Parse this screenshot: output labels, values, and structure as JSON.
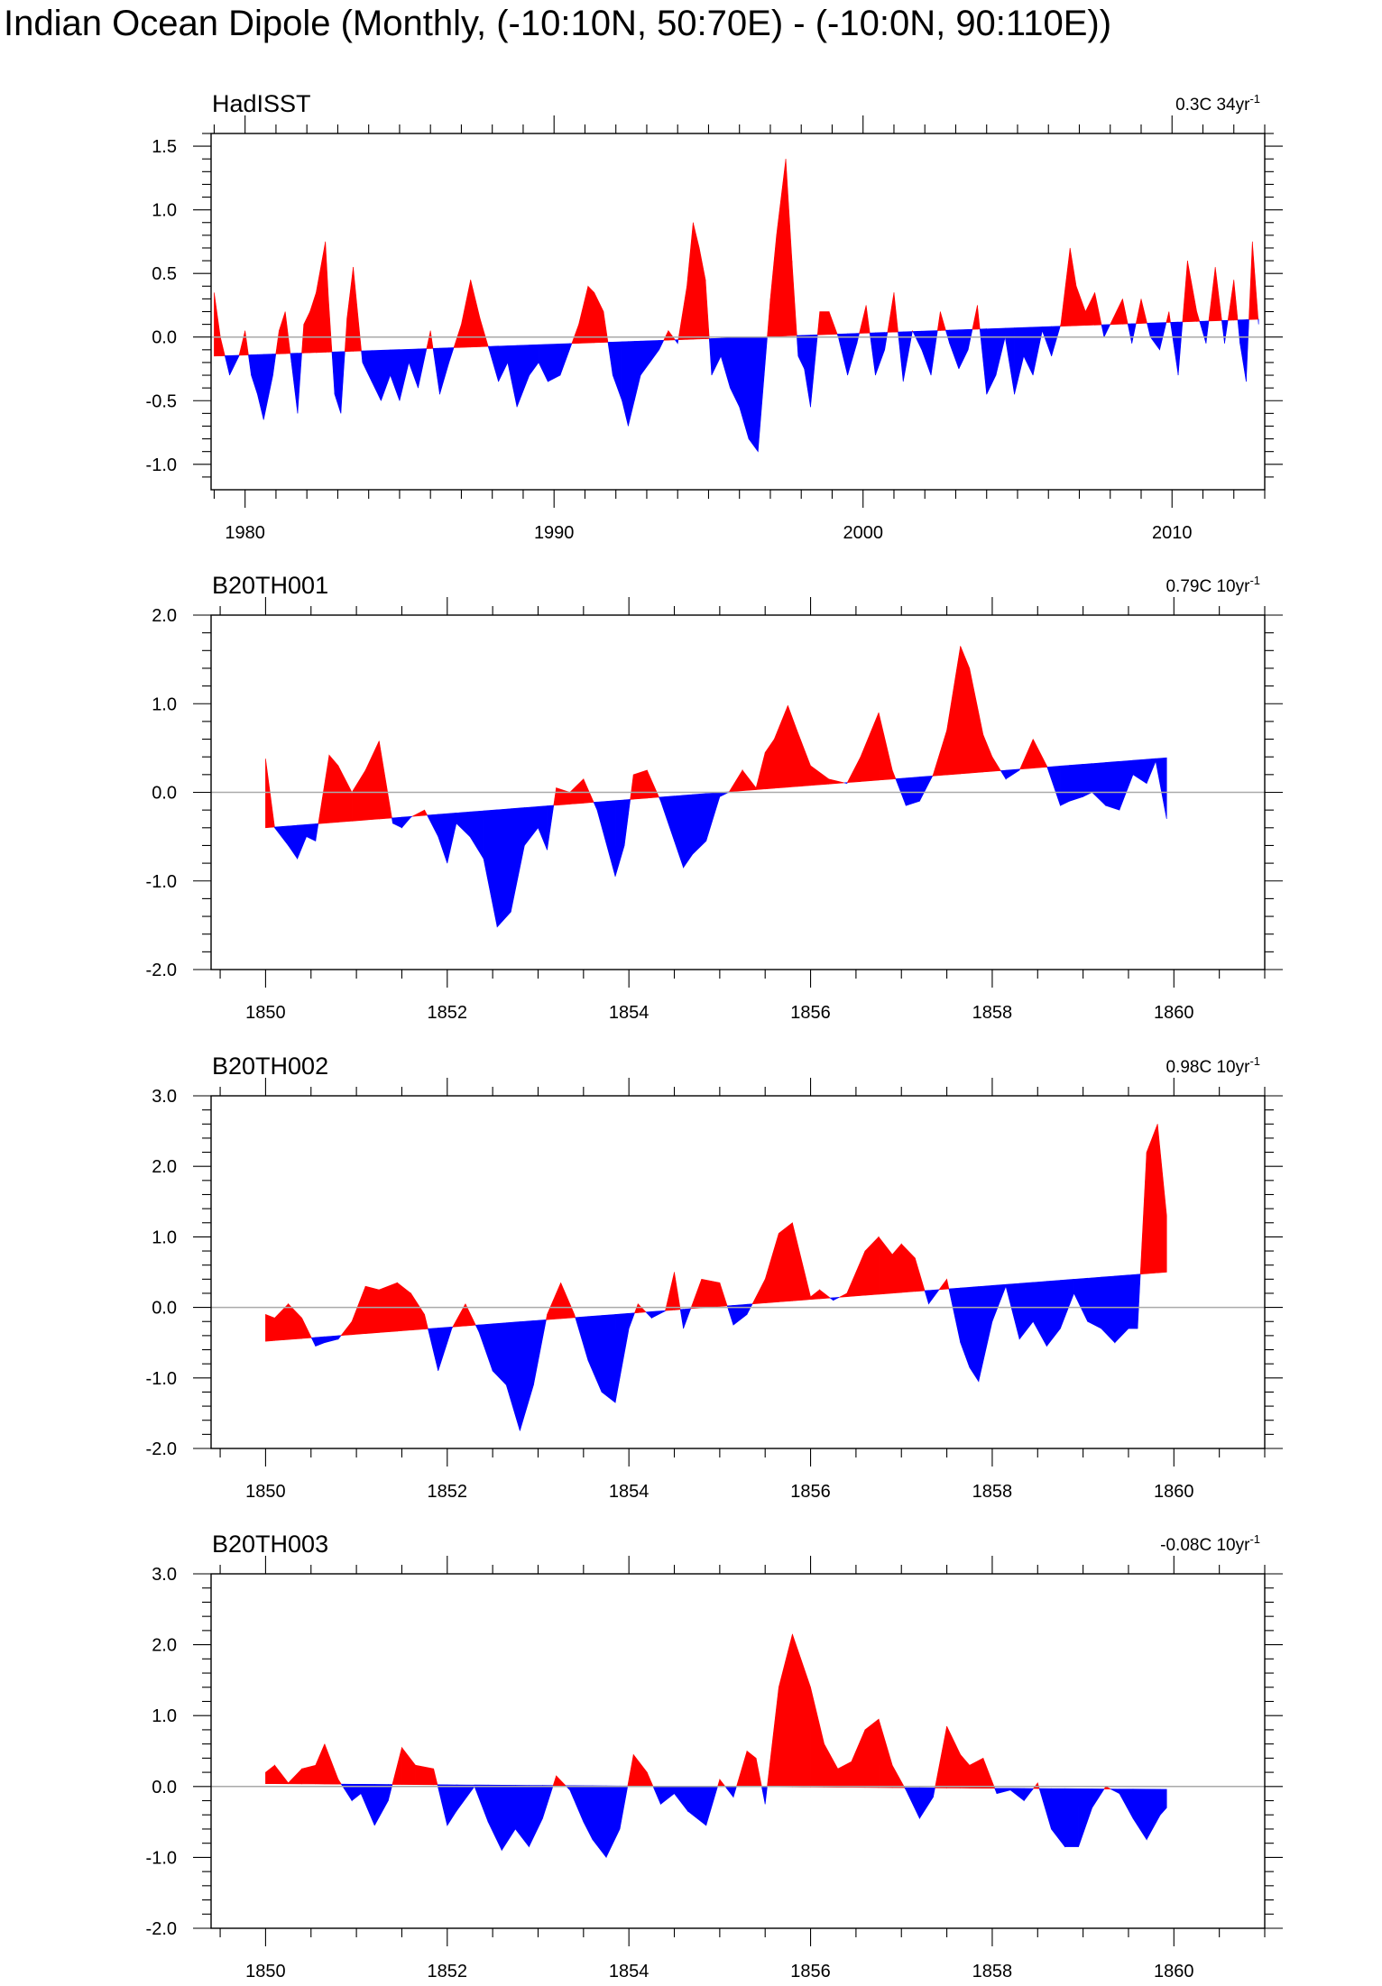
{
  "title": "Indian Ocean Dipole (Monthly, (-10:10N, 50:70E) - (-10:0N, 90:110E))",
  "colors": {
    "positive": "#ff0000",
    "negative": "#0000ff",
    "axis": "#000000",
    "zero_line": "#aaaaaa"
  },
  "chart_data": [
    {
      "type": "area",
      "title": "HadISST",
      "trend_label": "0.3C 34yr",
      "trend_superscript": "-1",
      "xlim": [
        1978.9,
        2013.0
      ],
      "ylim": [
        -1.2,
        1.6
      ],
      "xticks": [
        1980,
        1990,
        2000,
        2010
      ],
      "xtick_labels": [
        "1980",
        "1990",
        "2000",
        "2010"
      ],
      "yticks": [
        1.5,
        1.0,
        0.5,
        0.0,
        -0.5,
        -1.0
      ],
      "ytick_labels": [
        "1.5",
        "1.0",
        "0.5",
        "0.0",
        "-0.5",
        "-1.0"
      ],
      "trend": [
        [
          1979.0,
          -0.15
        ],
        [
          2012.8,
          0.14
        ]
      ],
      "x": [
        1979.0,
        1979.2,
        1979.5,
        1979.8,
        1980.0,
        1980.2,
        1980.4,
        1980.6,
        1980.9,
        1981.1,
        1981.3,
        1981.5,
        1981.7,
        1981.9,
        1982.1,
        1982.3,
        1982.6,
        1982.7,
        1982.9,
        1983.1,
        1983.3,
        1983.5,
        1983.8,
        1984.1,
        1984.4,
        1984.7,
        1985.0,
        1985.3,
        1985.6,
        1986.0,
        1986.3,
        1986.6,
        1987.0,
        1987.3,
        1987.6,
        1987.9,
        1988.2,
        1988.5,
        1988.8,
        1989.2,
        1989.5,
        1989.8,
        1990.2,
        1990.5,
        1990.8,
        1991.1,
        1991.3,
        1991.6,
        1991.9,
        1992.2,
        1992.4,
        1992.6,
        1992.8,
        1993.1,
        1993.4,
        1993.7,
        1994.0,
        1994.3,
        1994.5,
        1994.7,
        1994.9,
        1995.1,
        1995.4,
        1995.7,
        1996.0,
        1996.3,
        1996.6,
        1996.8,
        1997.0,
        1997.2,
        1997.5,
        1997.7,
        1997.9,
        1998.1,
        1998.3,
        1998.6,
        1998.9,
        1999.2,
        1999.5,
        1999.8,
        2000.1,
        2000.4,
        2000.7,
        2001.0,
        2001.3,
        2001.6,
        2001.9,
        2002.2,
        2002.5,
        2002.8,
        2003.1,
        2003.4,
        2003.7,
        2004.0,
        2004.3,
        2004.6,
        2004.9,
        2005.2,
        2005.5,
        2005.8,
        2006.1,
        2006.4,
        2006.7,
        2006.9,
        2007.2,
        2007.5,
        2007.8,
        2008.1,
        2008.4,
        2008.7,
        2009.0,
        2009.3,
        2009.6,
        2009.9,
        2010.2,
        2010.5,
        2010.8,
        2011.1,
        2011.4,
        2011.7,
        2012.0,
        2012.2,
        2012.4,
        2012.6,
        2012.8
      ],
      "y": [
        0.35,
        0.0,
        -0.3,
        -0.15,
        0.05,
        -0.3,
        -0.45,
        -0.65,
        -0.3,
        0.05,
        0.2,
        -0.2,
        -0.6,
        0.1,
        0.2,
        0.35,
        0.75,
        0.3,
        -0.45,
        -0.6,
        0.15,
        0.55,
        -0.2,
        -0.35,
        -0.5,
        -0.3,
        -0.5,
        -0.2,
        -0.4,
        0.05,
        -0.45,
        -0.2,
        0.1,
        0.45,
        0.15,
        -0.1,
        -0.35,
        -0.2,
        -0.55,
        -0.3,
        -0.2,
        -0.35,
        -0.3,
        -0.1,
        0.1,
        0.4,
        0.35,
        0.2,
        -0.3,
        -0.5,
        -0.7,
        -0.5,
        -0.3,
        -0.2,
        -0.1,
        0.05,
        -0.05,
        0.4,
        0.9,
        0.7,
        0.45,
        -0.3,
        -0.15,
        -0.4,
        -0.55,
        -0.8,
        -0.9,
        -0.3,
        0.3,
        0.8,
        1.4,
        0.6,
        -0.15,
        -0.25,
        -0.55,
        0.2,
        0.2,
        0.0,
        -0.3,
        -0.05,
        0.25,
        -0.3,
        -0.1,
        0.35,
        -0.35,
        0.05,
        -0.1,
        -0.3,
        0.2,
        -0.05,
        -0.25,
        -0.1,
        0.25,
        -0.45,
        -0.3,
        0.0,
        -0.45,
        -0.15,
        -0.3,
        0.05,
        -0.15,
        0.1,
        0.7,
        0.4,
        0.2,
        0.35,
        0.0,
        0.15,
        0.3,
        -0.05,
        0.3,
        0.0,
        -0.1,
        0.2,
        -0.3,
        0.6,
        0.2,
        -0.05,
        0.55,
        -0.05,
        0.45,
        -0.05,
        -0.35,
        0.75,
        0.1
      ]
    },
    {
      "type": "area",
      "title": "B20TH001",
      "trend_label": "0.79C 10yr",
      "trend_superscript": "-1",
      "xlim": [
        1849.4,
        1861.0
      ],
      "ylim": [
        -2.0,
        2.0
      ],
      "xticks": [
        1850,
        1852,
        1854,
        1856,
        1858,
        1860
      ],
      "xtick_labels": [
        "1850",
        "1852",
        "1854",
        "1856",
        "1858",
        "1860"
      ],
      "yticks": [
        2.0,
        1.0,
        0.0,
        -1.0,
        -2.0
      ],
      "ytick_labels": [
        "2.0",
        "1.0",
        "0.0",
        "-1.0",
        "-2.0"
      ],
      "trend": [
        [
          1850.0,
          -0.4
        ],
        [
          1859.92,
          0.39
        ]
      ],
      "x": [
        1850.0,
        1850.1,
        1850.25,
        1850.35,
        1850.45,
        1850.55,
        1850.7,
        1850.8,
        1850.95,
        1851.1,
        1851.25,
        1851.4,
        1851.5,
        1851.6,
        1851.75,
        1851.9,
        1852.0,
        1852.1,
        1852.25,
        1852.4,
        1852.55,
        1852.7,
        1852.85,
        1853.0,
        1853.1,
        1853.2,
        1853.35,
        1853.5,
        1853.65,
        1853.85,
        1853.95,
        1854.05,
        1854.2,
        1854.35,
        1854.5,
        1854.6,
        1854.7,
        1854.85,
        1855.0,
        1855.1,
        1855.25,
        1855.4,
        1855.5,
        1855.6,
        1855.75,
        1855.85,
        1856.0,
        1856.2,
        1856.4,
        1856.55,
        1856.75,
        1856.9,
        1857.05,
        1857.2,
        1857.35,
        1857.5,
        1857.65,
        1857.75,
        1857.9,
        1858.0,
        1858.15,
        1858.3,
        1858.45,
        1858.6,
        1858.75,
        1858.85,
        1859.0,
        1859.1,
        1859.25,
        1859.4,
        1859.55,
        1859.7,
        1859.8,
        1859.92
      ],
      "y": [
        0.38,
        -0.4,
        -0.6,
        -0.75,
        -0.5,
        -0.55,
        0.42,
        0.3,
        0.0,
        0.25,
        0.58,
        -0.35,
        -0.4,
        -0.28,
        -0.2,
        -0.5,
        -0.8,
        -0.35,
        -0.5,
        -0.75,
        -1.52,
        -1.35,
        -0.6,
        -0.4,
        -0.65,
        0.05,
        0.0,
        0.15,
        -0.2,
        -0.95,
        -0.6,
        0.2,
        0.25,
        -0.1,
        -0.55,
        -0.85,
        -0.7,
        -0.55,
        -0.05,
        0.0,
        0.25,
        0.05,
        0.45,
        0.6,
        0.98,
        0.7,
        0.3,
        0.15,
        0.1,
        0.4,
        0.9,
        0.25,
        -0.15,
        -0.1,
        0.2,
        0.7,
        1.65,
        1.4,
        0.65,
        0.4,
        0.15,
        0.25,
        0.6,
        0.3,
        -0.15,
        -0.1,
        -0.05,
        0.0,
        -0.15,
        -0.2,
        0.2,
        0.1,
        0.35,
        -0.3
      ]
    },
    {
      "type": "area",
      "title": "B20TH002",
      "trend_label": "0.98C 10yr",
      "trend_superscript": "-1",
      "xlim": [
        1849.4,
        1861.0
      ],
      "ylim": [
        -2.0,
        3.0
      ],
      "xticks": [
        1850,
        1852,
        1854,
        1856,
        1858,
        1860
      ],
      "xtick_labels": [
        "1850",
        "1852",
        "1854",
        "1856",
        "1858",
        "1860"
      ],
      "yticks": [
        3.0,
        2.0,
        1.0,
        0.0,
        -1.0,
        -2.0
      ],
      "ytick_labels": [
        "3.0",
        "2.0",
        "1.0",
        "0.0",
        "-1.0",
        "-2.0"
      ],
      "trend": [
        [
          1850.0,
          -0.48
        ],
        [
          1859.92,
          0.5
        ]
      ],
      "x": [
        1850.0,
        1850.1,
        1850.25,
        1850.4,
        1850.55,
        1850.65,
        1850.8,
        1850.95,
        1851.1,
        1851.25,
        1851.45,
        1851.6,
        1851.75,
        1851.9,
        1852.05,
        1852.2,
        1852.35,
        1852.5,
        1852.65,
        1852.8,
        1852.95,
        1853.1,
        1853.25,
        1853.4,
        1853.55,
        1853.7,
        1853.85,
        1854.0,
        1854.1,
        1854.25,
        1854.4,
        1854.5,
        1854.6,
        1854.8,
        1855.0,
        1855.15,
        1855.3,
        1855.5,
        1855.65,
        1855.8,
        1856.0,
        1856.1,
        1856.25,
        1856.4,
        1856.6,
        1856.75,
        1856.9,
        1857.0,
        1857.15,
        1857.3,
        1857.5,
        1857.65,
        1857.75,
        1857.85,
        1858.0,
        1858.15,
        1858.3,
        1858.45,
        1858.6,
        1858.75,
        1858.9,
        1859.05,
        1859.2,
        1859.35,
        1859.5,
        1859.6,
        1859.7,
        1859.82,
        1859.92
      ],
      "y": [
        -0.1,
        -0.15,
        0.05,
        -0.15,
        -0.55,
        -0.5,
        -0.45,
        -0.2,
        0.3,
        0.25,
        0.35,
        0.2,
        -0.1,
        -0.9,
        -0.3,
        0.05,
        -0.35,
        -0.9,
        -1.1,
        -1.75,
        -1.1,
        -0.1,
        0.35,
        -0.1,
        -0.75,
        -1.2,
        -1.35,
        -0.3,
        0.05,
        -0.15,
        -0.05,
        0.5,
        -0.3,
        0.4,
        0.35,
        -0.25,
        -0.1,
        0.4,
        1.05,
        1.2,
        0.15,
        0.25,
        0.1,
        0.2,
        0.8,
        1.0,
        0.75,
        0.9,
        0.7,
        0.05,
        0.4,
        -0.5,
        -0.85,
        -1.05,
        -0.2,
        0.3,
        -0.45,
        -0.2,
        -0.55,
        -0.3,
        0.2,
        -0.2,
        -0.3,
        -0.5,
        -0.3,
        -0.3,
        2.2,
        2.6,
        1.3
      ]
    },
    {
      "type": "area",
      "title": "B20TH003",
      "trend_label": "-0.08C 10yr",
      "trend_superscript": "-1",
      "xlim": [
        1849.4,
        1861.0
      ],
      "ylim": [
        -2.0,
        3.0
      ],
      "xticks": [
        1850,
        1852,
        1854,
        1856,
        1858,
        1860
      ],
      "xtick_labels": [
        "1850",
        "1852",
        "1854",
        "1856",
        "1858",
        "1860"
      ],
      "yticks": [
        3.0,
        2.0,
        1.0,
        0.0,
        -1.0,
        -2.0
      ],
      "ytick_labels": [
        "3.0",
        "2.0",
        "1.0",
        "0.0",
        "-1.0",
        "-2.0"
      ],
      "trend": [
        [
          1850.0,
          0.04
        ],
        [
          1859.92,
          -0.04
        ]
      ],
      "x": [
        1850.0,
        1850.1,
        1850.25,
        1850.4,
        1850.55,
        1850.65,
        1850.8,
        1850.95,
        1851.05,
        1851.2,
        1851.35,
        1851.5,
        1851.65,
        1851.85,
        1852.0,
        1852.1,
        1852.3,
        1852.45,
        1852.6,
        1852.75,
        1852.9,
        1853.05,
        1853.2,
        1853.35,
        1853.5,
        1853.6,
        1853.75,
        1853.9,
        1854.05,
        1854.2,
        1854.35,
        1854.5,
        1854.65,
        1854.85,
        1855.0,
        1855.15,
        1855.3,
        1855.4,
        1855.5,
        1855.65,
        1855.8,
        1856.0,
        1856.15,
        1856.3,
        1856.45,
        1856.6,
        1856.75,
        1856.9,
        1857.05,
        1857.2,
        1857.35,
        1857.5,
        1857.65,
        1857.75,
        1857.9,
        1858.05,
        1858.2,
        1858.35,
        1858.5,
        1858.65,
        1858.8,
        1858.95,
        1859.1,
        1859.25,
        1859.4,
        1859.55,
        1859.7,
        1859.85,
        1859.92
      ],
      "y": [
        0.2,
        0.3,
        0.05,
        0.25,
        0.3,
        0.6,
        0.1,
        -0.2,
        -0.1,
        -0.55,
        -0.2,
        0.55,
        0.3,
        0.25,
        -0.55,
        -0.35,
        0.0,
        -0.5,
        -0.9,
        -0.6,
        -0.85,
        -0.45,
        0.15,
        -0.05,
        -0.5,
        -0.75,
        -1.0,
        -0.6,
        0.45,
        0.2,
        -0.25,
        -0.1,
        -0.35,
        -0.55,
        0.1,
        -0.15,
        0.5,
        0.4,
        -0.25,
        1.4,
        2.15,
        1.4,
        0.6,
        0.25,
        0.35,
        0.8,
        0.95,
        0.3,
        -0.05,
        -0.45,
        -0.15,
        0.85,
        0.45,
        0.3,
        0.4,
        -0.1,
        -0.05,
        -0.2,
        0.05,
        -0.6,
        -0.85,
        -0.85,
        -0.3,
        0.0,
        -0.1,
        -0.45,
        -0.75,
        -0.4,
        -0.3
      ]
    }
  ]
}
